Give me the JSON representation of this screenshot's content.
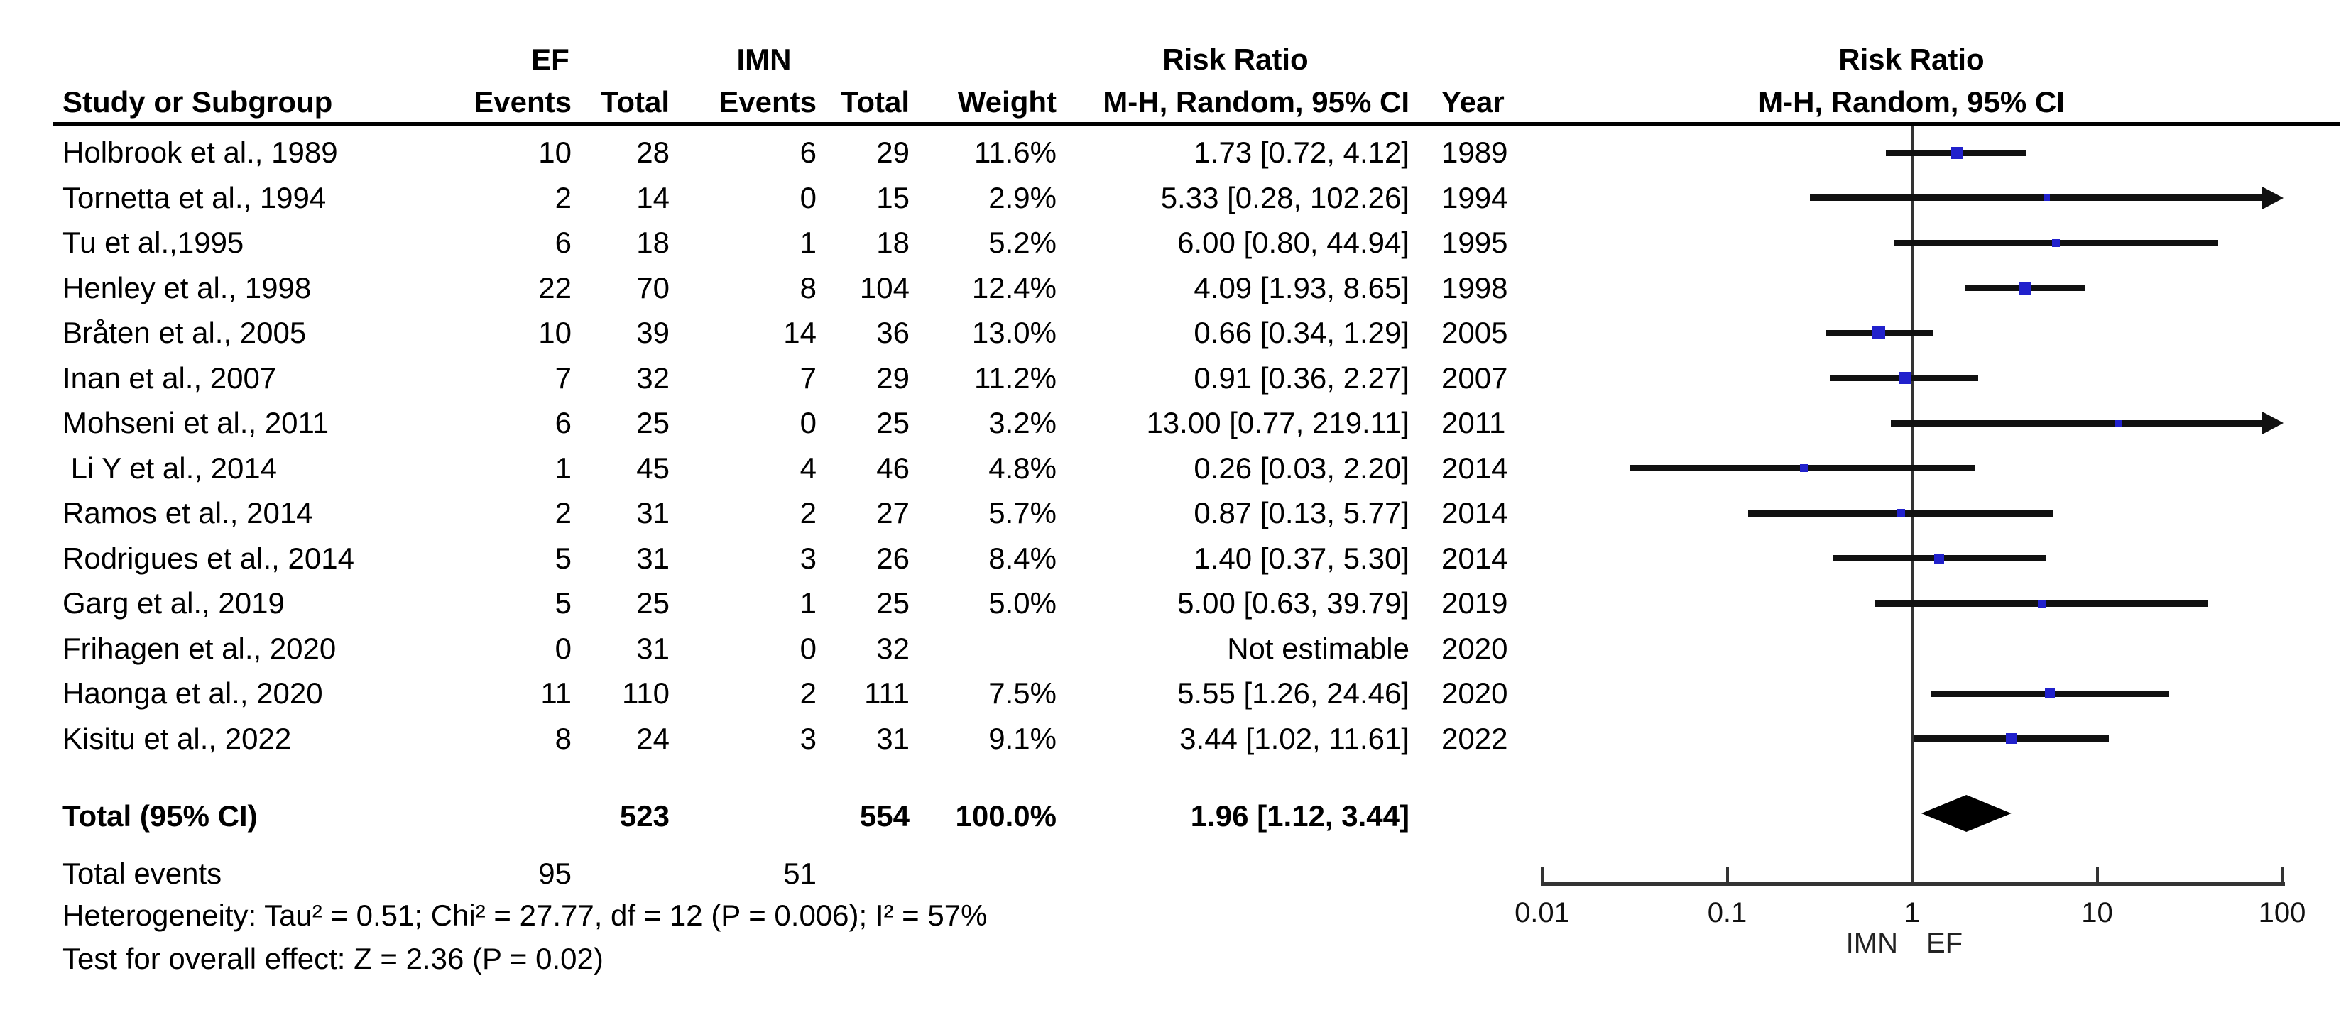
{
  "header": {
    "study_col": "Study or Subgroup",
    "group_ef": "EF",
    "group_imn": "IMN",
    "events": "Events",
    "total": "Total",
    "weight": "Weight",
    "rr_title": "Risk Ratio",
    "rr_sub": "M-H, Random, 95% CI",
    "year": "Year"
  },
  "colors": {
    "marker": "#2121CC",
    "ci_line": "#111111",
    "diamond": "#000000",
    "axis": "#333333"
  },
  "chart_data": {
    "type": "forest",
    "effect_measure": "Risk Ratio",
    "method": "M-H, Random, 95% CI",
    "x_axis": {
      "scale": "log",
      "ticks": [
        0.01,
        0.1,
        1,
        10,
        100
      ],
      "favours_left": "IMN",
      "favours_right": "EF"
    },
    "studies": [
      {
        "name": "Holbrook et al., 1989",
        "ef_events": 10,
        "ef_total": 28,
        "imn_events": 6,
        "imn_total": 29,
        "weight": "11.6%",
        "weight_value": 11.6,
        "rr_text": "1.73 [0.72, 4.12]",
        "year": "1989",
        "point": 1.73,
        "ci_low": 0.72,
        "ci_high": 4.12
      },
      {
        "name": "Tornetta et al., 1994",
        "ef_events": 2,
        "ef_total": 14,
        "imn_events": 0,
        "imn_total": 15,
        "weight": "2.9%",
        "weight_value": 2.9,
        "rr_text": "5.33 [0.28, 102.26]",
        "year": "1994",
        "point": 5.33,
        "ci_low": 0.28,
        "ci_high": 102.26
      },
      {
        "name": "Tu et al.,1995",
        "ef_events": 6,
        "ef_total": 18,
        "imn_events": 1,
        "imn_total": 18,
        "weight": "5.2%",
        "weight_value": 5.2,
        "rr_text": "6.00 [0.80, 44.94]",
        "year": "1995",
        "point": 6.0,
        "ci_low": 0.8,
        "ci_high": 44.94
      },
      {
        "name": "Henley et al., 1998",
        "ef_events": 22,
        "ef_total": 70,
        "imn_events": 8,
        "imn_total": 104,
        "weight": "12.4%",
        "weight_value": 12.4,
        "rr_text": "4.09 [1.93, 8.65]",
        "year": "1998",
        "point": 4.09,
        "ci_low": 1.93,
        "ci_high": 8.65
      },
      {
        "name": "Bråten et al., 2005",
        "ef_events": 10,
        "ef_total": 39,
        "imn_events": 14,
        "imn_total": 36,
        "weight": "13.0%",
        "weight_value": 13.0,
        "rr_text": "0.66 [0.34, 1.29]",
        "year": "2005",
        "point": 0.66,
        "ci_low": 0.34,
        "ci_high": 1.29
      },
      {
        "name": "Inan et al., 2007",
        "ef_events": 7,
        "ef_total": 32,
        "imn_events": 7,
        "imn_total": 29,
        "weight": "11.2%",
        "weight_value": 11.2,
        "rr_text": "0.91 [0.36, 2.27]",
        "year": "2007",
        "point": 0.91,
        "ci_low": 0.36,
        "ci_high": 2.27
      },
      {
        "name": "Mohseni et al., 2011",
        "ef_events": 6,
        "ef_total": 25,
        "imn_events": 0,
        "imn_total": 25,
        "weight": "3.2%",
        "weight_value": 3.2,
        "rr_text": "13.00 [0.77, 219.11]",
        "year": "2011",
        "point": 13.0,
        "ci_low": 0.77,
        "ci_high": 219.11
      },
      {
        "name": " Li Y et al., 2014",
        "ef_events": 1,
        "ef_total": 45,
        "imn_events": 4,
        "imn_total": 46,
        "weight": "4.8%",
        "weight_value": 4.8,
        "rr_text": "0.26 [0.03, 2.20]",
        "year": "2014",
        "point": 0.26,
        "ci_low": 0.03,
        "ci_high": 2.2
      },
      {
        "name": "Ramos et al., 2014",
        "ef_events": 2,
        "ef_total": 31,
        "imn_events": 2,
        "imn_total": 27,
        "weight": "5.7%",
        "weight_value": 5.7,
        "rr_text": "0.87 [0.13, 5.77]",
        "year": "2014",
        "point": 0.87,
        "ci_low": 0.13,
        "ci_high": 5.77
      },
      {
        "name": "Rodrigues et al., 2014",
        "ef_events": 5,
        "ef_total": 31,
        "imn_events": 3,
        "imn_total": 26,
        "weight": "8.4%",
        "weight_value": 8.4,
        "rr_text": "1.40 [0.37, 5.30]",
        "year": "2014",
        "point": 1.4,
        "ci_low": 0.37,
        "ci_high": 5.3
      },
      {
        "name": "Garg et al., 2019",
        "ef_events": 5,
        "ef_total": 25,
        "imn_events": 1,
        "imn_total": 25,
        "weight": "5.0%",
        "weight_value": 5.0,
        "rr_text": "5.00 [0.63, 39.79]",
        "year": "2019",
        "point": 5.0,
        "ci_low": 0.63,
        "ci_high": 39.79
      },
      {
        "name": "Frihagen et al., 2020",
        "ef_events": 0,
        "ef_total": 31,
        "imn_events": 0,
        "imn_total": 32,
        "weight": "",
        "weight_value": 0,
        "rr_text": "Not estimable",
        "year": "2020",
        "point": null,
        "ci_low": null,
        "ci_high": null
      },
      {
        "name": "Haonga et al., 2020",
        "ef_events": 11,
        "ef_total": 110,
        "imn_events": 2,
        "imn_total": 111,
        "weight": "7.5%",
        "weight_value": 7.5,
        "rr_text": "5.55 [1.26, 24.46]",
        "year": "2020",
        "point": 5.55,
        "ci_low": 1.26,
        "ci_high": 24.46
      },
      {
        "name": "Kisitu et al., 2022",
        "ef_events": 8,
        "ef_total": 24,
        "imn_events": 3,
        "imn_total": 31,
        "weight": "9.1%",
        "weight_value": 9.1,
        "rr_text": "3.44 [1.02, 11.61]",
        "year": "2022",
        "point": 3.44,
        "ci_low": 1.02,
        "ci_high": 11.61
      }
    ],
    "total": {
      "label": "Total (95% CI)",
      "ef_total": 523,
      "imn_total": 554,
      "weight": "100.0%",
      "rr_text": "1.96 [1.12, 3.44]",
      "point": 1.96,
      "ci_low": 1.12,
      "ci_high": 3.44
    },
    "total_events": {
      "label": "Total events",
      "ef": 95,
      "imn": 51
    },
    "heterogeneity": "Heterogeneity: Tau² = 0.51; Chi² = 27.77, df = 12 (P = 0.006); I² = 57%",
    "overall_effect": "Test for overall effect: Z = 2.36 (P = 0.02)"
  }
}
